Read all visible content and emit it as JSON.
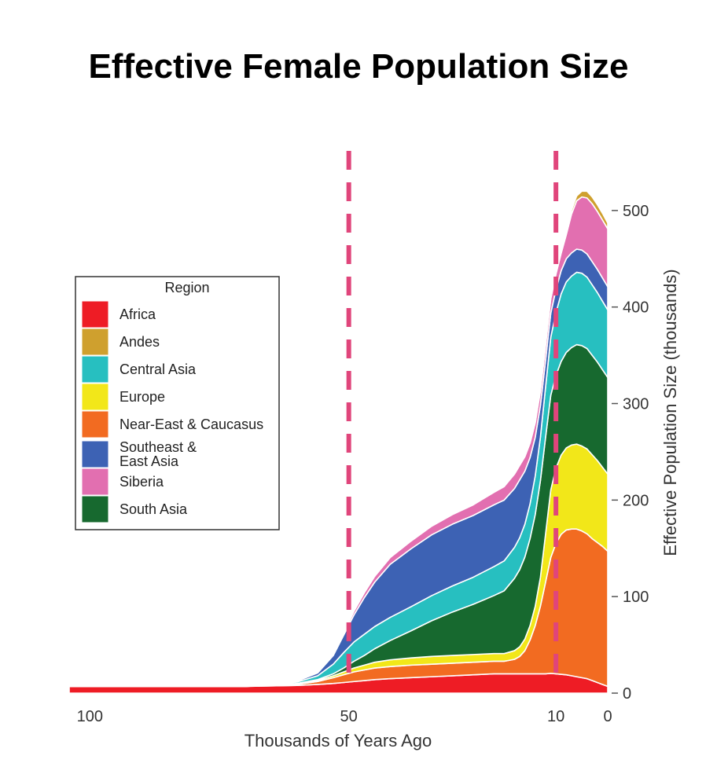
{
  "chart_data": {
    "type": "area",
    "stacked": true,
    "title": "Effective Female Population Size",
    "xlabel": "Thousands of Years Ago",
    "ylabel": "Effective Population Size (thousands)",
    "x_reversed": true,
    "xlim": [
      104,
      0
    ],
    "ylim": [
      0,
      530
    ],
    "x_ticks": [
      {
        "value": 100,
        "label": "100"
      },
      {
        "value": 50,
        "label": "50"
      },
      {
        "value": 10,
        "label": "10"
      },
      {
        "value": 0,
        "label": "0"
      }
    ],
    "y_ticks": [
      {
        "value": 0,
        "label": "0"
      },
      {
        "value": 100,
        "label": "100"
      },
      {
        "value": 200,
        "label": "200"
      },
      {
        "value": 300,
        "label": "300"
      },
      {
        "value": 400,
        "label": "400"
      },
      {
        "value": 500,
        "label": "500"
      }
    ],
    "reference_lines": [
      {
        "x": 50,
        "style": "dashed",
        "color": "#e0457b"
      },
      {
        "x": 10,
        "style": "dashed",
        "color": "#e0457b"
      }
    ],
    "legend": {
      "title": "Region",
      "position": "left"
    },
    "x": [
      104,
      90,
      80,
      70,
      65,
      60,
      56,
      53,
      51,
      49,
      47,
      45,
      42,
      38,
      34,
      30,
      26,
      24,
      22,
      20,
      19,
      18,
      17,
      16,
      15,
      14,
      13,
      12,
      11,
      10,
      9,
      8,
      7,
      6,
      5,
      4,
      3,
      2,
      1,
      0
    ],
    "series": [
      {
        "name": "Africa",
        "color": "#ee1c25",
        "values": [
          7,
          7,
          7,
          7,
          7.5,
          8,
          9,
          10,
          11,
          12,
          13,
          14,
          15,
          16,
          17,
          18,
          19,
          19.5,
          20,
          20,
          20,
          20,
          20,
          20,
          20,
          20,
          20,
          20,
          20.5,
          20,
          19.5,
          19,
          18,
          17,
          16,
          15,
          13,
          11,
          9,
          7
        ]
      },
      {
        "name": "Near-East & Caucasus",
        "color": "#f26b21",
        "values": [
          0,
          0,
          0,
          0,
          0.5,
          1,
          3,
          6,
          8,
          10,
          11,
          12,
          12.5,
          13,
          13,
          13,
          13,
          13,
          13,
          13,
          14,
          15,
          18,
          24,
          35,
          50,
          70,
          95,
          120,
          135,
          145,
          150,
          152,
          153,
          152,
          150,
          147,
          145,
          143,
          140
        ]
      },
      {
        "name": "Europe",
        "color": "#f2e719",
        "values": [
          0,
          0,
          0,
          0,
          0,
          0.5,
          1,
          2,
          3,
          4,
          5,
          6,
          7,
          7.5,
          8,
          8,
          8,
          8,
          8,
          8,
          8.5,
          9,
          10,
          12,
          15,
          20,
          30,
          50,
          70,
          78,
          82,
          85,
          87,
          88,
          88,
          88,
          87,
          85,
          82,
          80
        ]
      },
      {
        "name": "South Asia",
        "color": "#17692f",
        "values": [
          0,
          0,
          0,
          0,
          0,
          0.5,
          1,
          2,
          4,
          7,
          10,
          14,
          20,
          28,
          37,
          45,
          52,
          56,
          60,
          65,
          70,
          75,
          80,
          85,
          90,
          95,
          100,
          100,
          98,
          96,
          97,
          99,
          101,
          103,
          104,
          104,
          103,
          102,
          101,
          100
        ]
      },
      {
        "name": "Central Asia",
        "color": "#27bfc0",
        "values": [
          0,
          0,
          0,
          0,
          0.5,
          1.5,
          4,
          10,
          16,
          20,
          22,
          23,
          24,
          25,
          26,
          27,
          28,
          29,
          30,
          31,
          31.5,
          32,
          33,
          34,
          36,
          40,
          45,
          52,
          60,
          65,
          70,
          73,
          74,
          75,
          75,
          74,
          73,
          72,
          71,
          70
        ]
      },
      {
        "name": "Southeast & East Asia",
        "color": "#3d62b4",
        "values": [
          0,
          0,
          0,
          0,
          0.5,
          1,
          3,
          9,
          18,
          28,
          38,
          46,
          55,
          60,
          63,
          64,
          64,
          64,
          64,
          63,
          62,
          61,
          60,
          55,
          48,
          40,
          33,
          28,
          25,
          24,
          24,
          24,
          24,
          24,
          24,
          24,
          24,
          24,
          24,
          24
        ]
      },
      {
        "name": "Siberia",
        "color": "#e26fb0",
        "values": [
          0,
          0,
          0,
          0,
          0,
          0.2,
          0.5,
          1,
          2,
          4,
          5,
          6,
          7,
          8,
          9,
          10,
          11,
          12,
          13,
          14,
          14.5,
          15,
          15,
          15,
          15,
          15,
          15,
          15,
          15,
          16,
          18,
          25,
          40,
          50,
          55,
          58,
          60,
          60,
          60,
          60
        ]
      },
      {
        "name": "Andes",
        "color": "#cfa02e",
        "values": [
          0,
          0,
          0,
          0,
          0,
          0,
          0,
          0,
          0,
          0,
          0,
          0,
          0,
          0,
          0,
          0,
          0,
          0,
          0,
          0,
          0,
          0,
          0,
          0,
          0,
          0,
          0,
          0.5,
          1,
          1.5,
          2,
          3,
          4,
          5,
          6,
          7,
          7,
          7,
          7,
          6
        ]
      }
    ],
    "legend_order": [
      "Africa",
      "Andes",
      "Central Asia",
      "Europe",
      "Near-East & Caucasus",
      "Southeast & East Asia",
      "Siberia",
      "South Asia"
    ],
    "legend_labels": {
      "Africa": [
        "Africa"
      ],
      "Andes": [
        "Andes"
      ],
      "Central Asia": [
        "Central Asia"
      ],
      "Europe": [
        "Europe"
      ],
      "Near-East & Caucasus": [
        "Near-East & Caucasus"
      ],
      "Southeast & East Asia": [
        "Southeast &",
        "East Asia"
      ],
      "Siberia": [
        "Siberia"
      ],
      "South Asia": [
        "South Asia"
      ]
    }
  }
}
